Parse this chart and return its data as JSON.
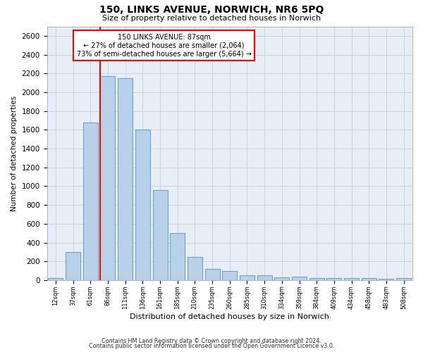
{
  "title": "150, LINKS AVENUE, NORWICH, NR6 5PQ",
  "subtitle": "Size of property relative to detached houses in Norwich",
  "xlabel": "Distribution of detached houses by size in Norwich",
  "ylabel": "Number of detached properties",
  "footer_line1": "Contains HM Land Registry data © Crown copyright and database right 2024.",
  "footer_line2": "Contains public sector information licensed under the Open Government Licence v3.0.",
  "annotation_title": "150 LINKS AVENUE: 87sqm",
  "annotation_line1": "← 27% of detached houses are smaller (2,064)",
  "annotation_line2": "73% of semi-detached houses are larger (5,664) →",
  "bar_color": "#b8d0e8",
  "bar_edge_color": "#6699cc",
  "ref_line_color": "red",
  "ref_line_x": 3,
  "categories": [
    "12sqm",
    "37sqm",
    "61sqm",
    "86sqm",
    "111sqm",
    "136sqm",
    "161sqm",
    "185sqm",
    "210sqm",
    "235sqm",
    "260sqm",
    "285sqm",
    "310sqm",
    "334sqm",
    "359sqm",
    "384sqm",
    "409sqm",
    "434sqm",
    "458sqm",
    "483sqm",
    "508sqm"
  ],
  "values": [
    25,
    300,
    1675,
    2175,
    2150,
    1600,
    960,
    505,
    250,
    120,
    100,
    50,
    50,
    30,
    35,
    20,
    25,
    20,
    20,
    15,
    25
  ],
  "ylim": [
    0,
    2700
  ],
  "yticks": [
    0,
    200,
    400,
    600,
    800,
    1000,
    1200,
    1400,
    1600,
    1800,
    2000,
    2200,
    2400,
    2600
  ],
  "annotation_box_color": "white",
  "annotation_box_edge_color": "red",
  "grid_color": "#c8d4e4",
  "bg_color": "#e8eef6",
  "title_fontsize": 10,
  "subtitle_fontsize": 8,
  "ylabel_fontsize": 7.5,
  "xlabel_fontsize": 8,
  "ytick_fontsize": 7.5,
  "xtick_fontsize": 6,
  "footer_fontsize": 5.8,
  "annot_fontsize": 7
}
